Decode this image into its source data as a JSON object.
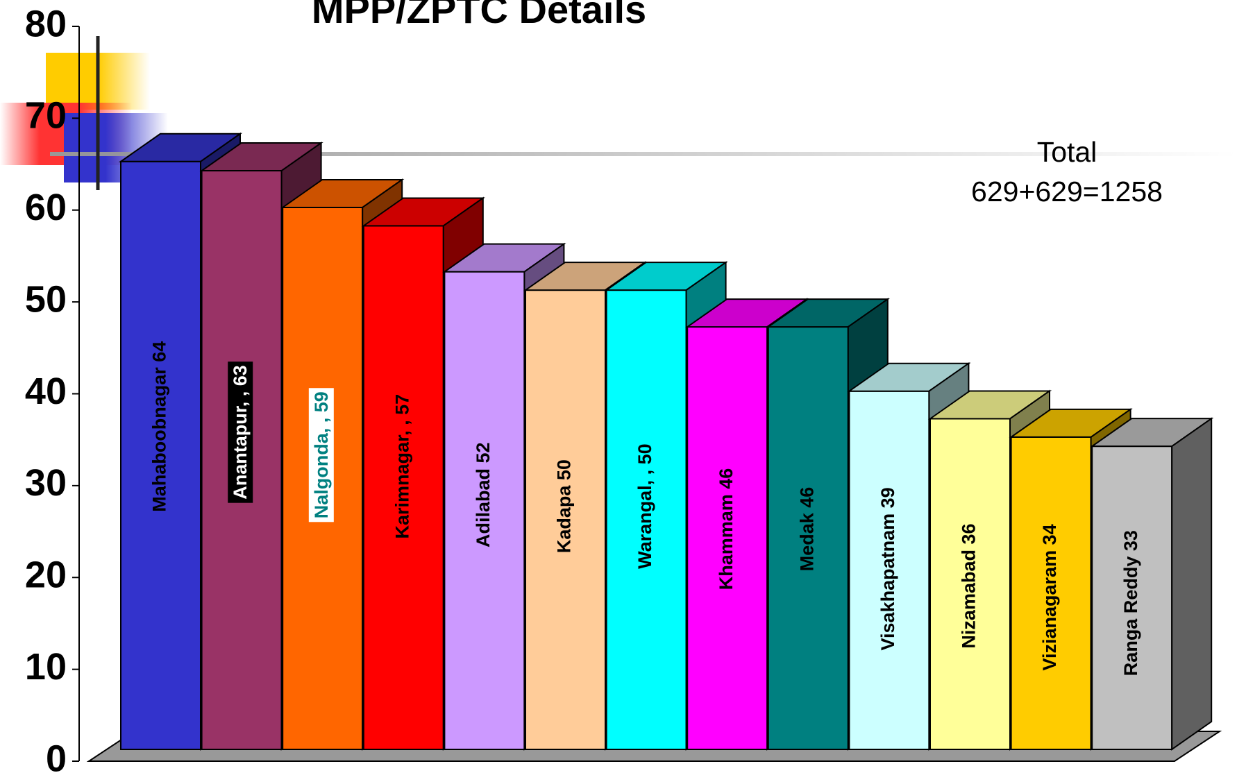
{
  "chart_data": {
    "type": "bar3d",
    "title": "MPP/ZPTC Details",
    "values": [
      64,
      63,
      59,
      57,
      52,
      50,
      50,
      46,
      46,
      39,
      36,
      34,
      33
    ],
    "value_labels": [
      "Mahaboobnagar  64",
      "Anantapur, , 63",
      "Nalgonda, , 59",
      "Karimnagar, , 57",
      "Adilabad  52",
      "Kadapa  50",
      "Warangal, , 50",
      "Khammam  46",
      "Medak  46",
      "Visakhapatnam  39",
      "Nizamabad  36",
      "Vizianagaram  34",
      "Ranga Reddy  33"
    ],
    "colors": [
      "#3333cc",
      "#993366",
      "#ff6600",
      "#ff0000",
      "#cc99ff",
      "#ffcc99",
      "#00ffff",
      "#ff00ff",
      "#008080",
      "#ccffff",
      "#ffff99",
      "#ffcc00",
      "#c0c0c0"
    ],
    "ylim": [
      0,
      80
    ],
    "yticks": [
      0,
      10,
      20,
      30,
      40,
      50,
      60,
      70,
      80
    ],
    "annotation": [
      "Total",
      "629+629=1258"
    ]
  }
}
